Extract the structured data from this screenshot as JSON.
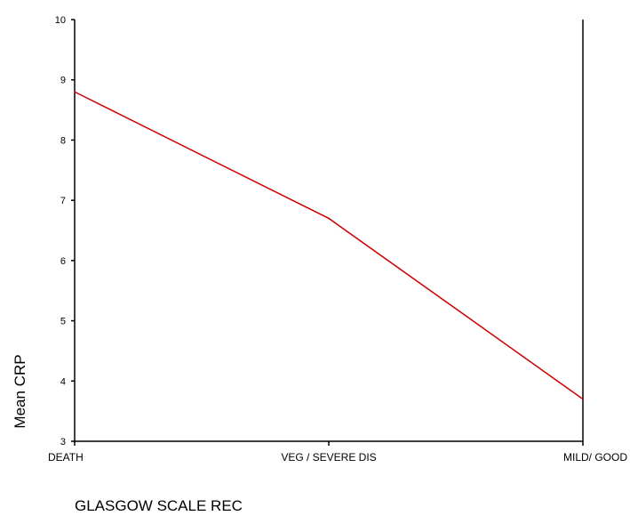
{
  "chart_data": {
    "type": "line",
    "title": "",
    "xlabel": "GLASGOW SCALE REC",
    "ylabel": "Mean CRP",
    "categories": [
      "DEATH",
      "VEG / SEVERE DIS",
      "MILD/ GOOD"
    ],
    "y_ticks": [
      "3",
      "4",
      "5",
      "6",
      "7",
      "8",
      "9",
      "10"
    ],
    "ylim": [
      3,
      10
    ],
    "grid": false,
    "legend": "none",
    "series": [
      {
        "values": [
          8.8,
          6.7,
          3.7
        ],
        "color": "#cc0000"
      }
    ],
    "axis_color": "#000000"
  }
}
